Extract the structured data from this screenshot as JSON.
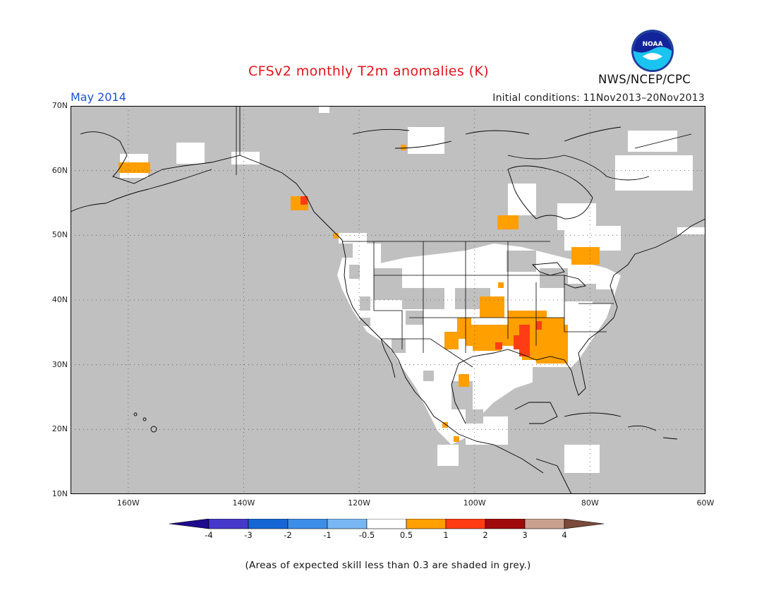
{
  "header": {
    "title": "CFSv2 monthly T2m anomalies (K)",
    "month": "May 2014",
    "initial_conditions": "Initial conditions: 11Nov2013–20Nov2013",
    "organization": "NWS/NCEP/CPC",
    "logo_text": "NOAA"
  },
  "map": {
    "projection": "equirectangular",
    "lon_range": [
      -170,
      -60
    ],
    "lat_range": [
      10,
      70
    ],
    "lat_labels": [
      "70N",
      "60N",
      "50N",
      "40N",
      "30N",
      "20N",
      "10N"
    ],
    "lon_labels": [
      "160W",
      "140W",
      "120W",
      "100W",
      "80W",
      "60W"
    ],
    "gridlines": "dotted",
    "colors": {
      "ocean_land_grey": "#c0c0c0",
      "neutral_white": "#ffffff",
      "anom_0_5_to_1": "#ff9f00",
      "anom_1_to_2": "#ff3d14",
      "coastline": "#000000"
    }
  },
  "colorbar": {
    "levels": [
      "-4",
      "-3",
      "-2",
      "-1",
      "-0.5",
      "0.5",
      "1",
      "2",
      "3",
      "4"
    ],
    "colors": [
      "#1d0a8c",
      "#4638c9",
      "#1566d4",
      "#3d8ee6",
      "#78b7f2",
      "#ffffff",
      "#ff9f00",
      "#ff3d14",
      "#a00a0a",
      "#c9a08e",
      "#7a4a3a"
    ]
  },
  "footnote": "(Areas of expected skill less than 0.3 are shaded in grey.)"
}
